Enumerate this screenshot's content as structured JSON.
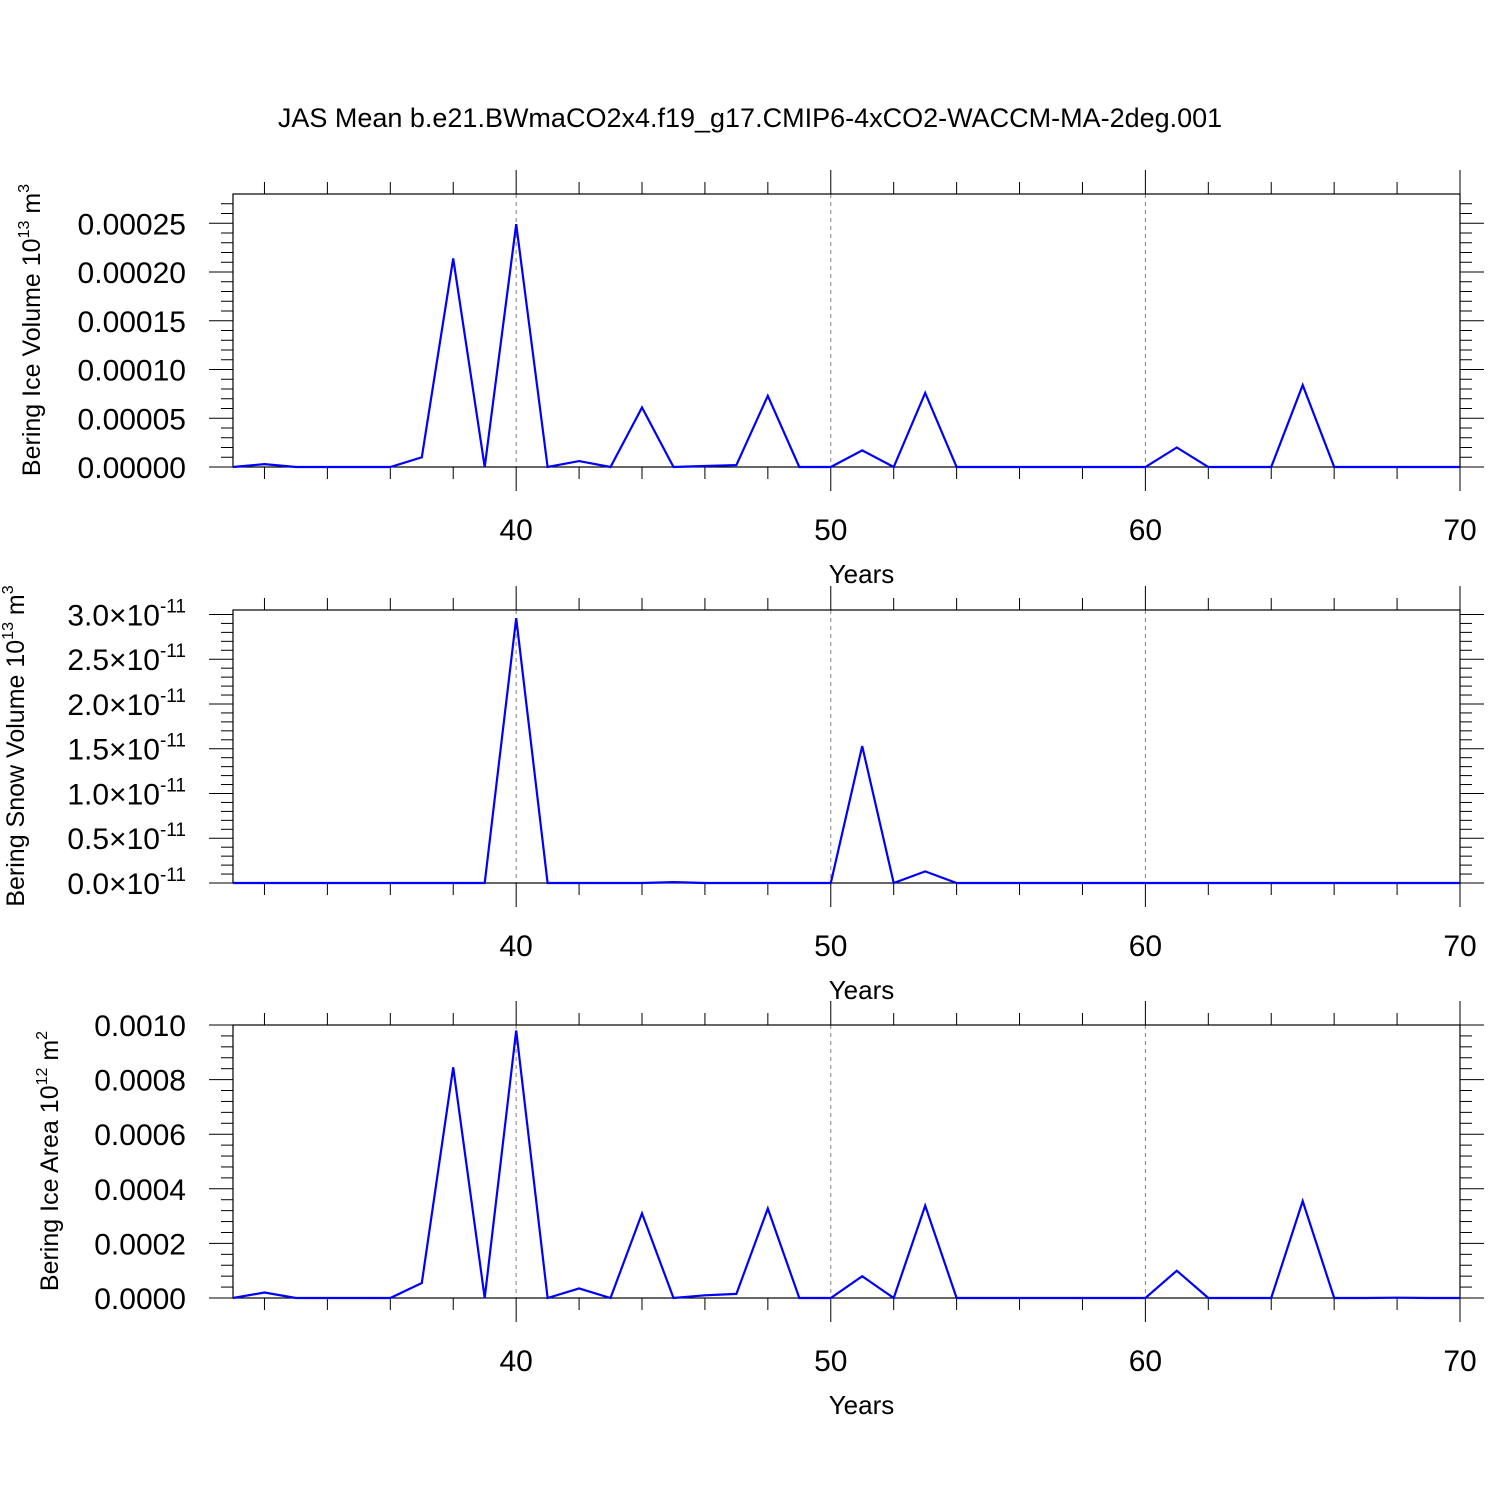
{
  "title": "JAS Mean b.e21.BWmaCO2x4.f19_g17.CMIP6-4xCO2-WACCM-MA-2deg.001",
  "colors": {
    "line": "#0000ff",
    "axis": "#000000",
    "grid": "#808080"
  },
  "chart_data": [
    {
      "type": "line",
      "title": "JAS Mean b.e21.BWmaCO2x4.f19_g17.CMIP6-4xCO2-WACCM-MA-2deg.001",
      "xlabel": "Years",
      "ylabel": "Bering Ice Volume 10",
      "ylabel_exp": "13",
      "ylabel_unit": "m",
      "ylabel_unit_exp": "3",
      "xlim": [
        31,
        70
      ],
      "ylim": [
        0,
        0.00028
      ],
      "xticks": [
        40,
        50,
        60,
        70
      ],
      "yticks": [
        "0.00000",
        "0.00005",
        "0.00010",
        "0.00015",
        "0.00020",
        "0.00025"
      ],
      "ytick_values": [
        0,
        5e-05,
        0.0001,
        0.00015,
        0.0002,
        0.00025
      ],
      "ytick_exp": null,
      "grid": "vertical dashed at major x ticks",
      "x": [
        31,
        32,
        33,
        34,
        35,
        36,
        37,
        38,
        39,
        40,
        41,
        42,
        43,
        44,
        45,
        46,
        47,
        48,
        49,
        50,
        51,
        52,
        53,
        54,
        55,
        56,
        57,
        58,
        59,
        60,
        61,
        62,
        63,
        64,
        65,
        66,
        67,
        68,
        69,
        70
      ],
      "values": [
        0,
        3e-06,
        0,
        0,
        0,
        0,
        1e-05,
        0.000214,
        0,
        0.000249,
        0,
        6e-06,
        0,
        6.1e-05,
        0,
        1e-06,
        2e-06,
        7.3e-05,
        0,
        0,
        1.7e-05,
        0,
        7.6e-05,
        0,
        0,
        0,
        0,
        0,
        0,
        0,
        2e-05,
        0,
        0,
        0,
        8.4e-05,
        0,
        0,
        0,
        0,
        0
      ]
    },
    {
      "type": "line",
      "xlabel": "Years",
      "ylabel": "Bering Snow Volume 10",
      "ylabel_exp": "13",
      "ylabel_unit": "m",
      "ylabel_unit_exp": "3",
      "xlim": [
        31,
        70
      ],
      "ylim": [
        0,
        3.05e-11
      ],
      "xticks": [
        40,
        50,
        60,
        70
      ],
      "yticks": [
        "0.0",
        "0.5",
        "1.0",
        "1.5",
        "2.0",
        "2.5",
        "3.0"
      ],
      "ytick_values": [
        0,
        5e-12,
        1e-11,
        1.5e-11,
        2e-11,
        2.5e-11,
        3e-11
      ],
      "ytick_exp": "-11",
      "ytick_mult": "×10",
      "grid": "vertical dashed at major x ticks",
      "x": [
        31,
        32,
        33,
        34,
        35,
        36,
        37,
        38,
        39,
        40,
        41,
        42,
        43,
        44,
        45,
        46,
        47,
        48,
        49,
        50,
        51,
        52,
        53,
        54,
        55,
        56,
        57,
        58,
        59,
        60,
        61,
        62,
        63,
        64,
        65,
        66,
        67,
        68,
        69,
        70
      ],
      "values": [
        0,
        0,
        0,
        0,
        0,
        0,
        0,
        0,
        0,
        2.96e-11,
        0,
        0,
        0,
        0,
        1e-13,
        0,
        0,
        0,
        0,
        0,
        1.53e-11,
        0,
        1.3e-12,
        0,
        0,
        0,
        0,
        0,
        0,
        0,
        0,
        0,
        0,
        0,
        0,
        0,
        0,
        0,
        0,
        0
      ]
    },
    {
      "type": "line",
      "xlabel": "Years",
      "ylabel": "Bering Ice Area 10",
      "ylabel_exp": "12",
      "ylabel_unit": "m",
      "ylabel_unit_exp": "2",
      "xlim": [
        31,
        70
      ],
      "ylim": [
        0,
        0.001
      ],
      "xticks": [
        40,
        50,
        60,
        70
      ],
      "yticks": [
        "0.0000",
        "0.0002",
        "0.0004",
        "0.0006",
        "0.0008",
        "0.0010"
      ],
      "ytick_values": [
        0,
        0.0002,
        0.0004,
        0.0006,
        0.0008,
        0.001
      ],
      "ytick_exp": null,
      "grid": "vertical dashed at major x ticks",
      "x": [
        31,
        32,
        33,
        34,
        35,
        36,
        37,
        38,
        39,
        40,
        41,
        42,
        43,
        44,
        45,
        46,
        47,
        48,
        49,
        50,
        51,
        52,
        53,
        54,
        55,
        56,
        57,
        58,
        59,
        60,
        61,
        62,
        63,
        64,
        65,
        66,
        67,
        68,
        69,
        70
      ],
      "values": [
        0,
        2e-05,
        0,
        0,
        0,
        0,
        5.5e-05,
        0.000845,
        0,
        0.00098,
        0,
        3.5e-05,
        0,
        0.00031,
        0,
        1e-05,
        1.5e-05,
        0.000328,
        0,
        0,
        8e-05,
        0,
        0.000338,
        0,
        0,
        0,
        0,
        0,
        0,
        0,
        0.0001,
        0,
        0,
        0,
        0.000355,
        0,
        0,
        1e-06,
        0,
        0
      ]
    }
  ]
}
